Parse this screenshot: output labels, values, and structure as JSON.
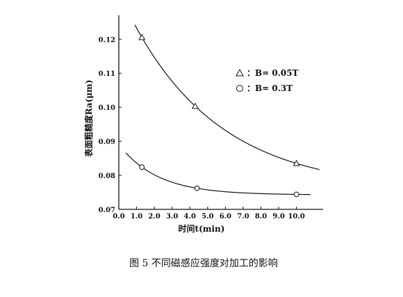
{
  "chart_data": {
    "type": "scatter",
    "xlabel": "时间t(min)",
    "ylabel": "表面粗糙度Ra(μm)",
    "xlim": [
      0,
      11.5
    ],
    "ylim": [
      0.07,
      0.127
    ],
    "x_ticks": [
      0,
      1,
      2,
      3,
      4,
      5,
      6,
      7,
      8,
      9,
      10
    ],
    "x_tick_labels": [
      "0.0",
      "1.0",
      "2.0",
      "3.0",
      "4.0",
      "5.0",
      "6.0",
      "7.0",
      "8.0",
      "9.0",
      "10.0"
    ],
    "y_ticks": [
      0.07,
      0.08,
      0.09,
      0.1,
      0.11,
      0.12
    ],
    "y_tick_labels": [
      "0.07",
      "0.08",
      "0.09",
      "0.10",
      "0.11",
      "0.12"
    ],
    "legend_position": "upper-right",
    "series": [
      {
        "name": "：B= 0.05T",
        "marker": "triangle",
        "x": [
          1.3,
          4.3,
          10.0
        ],
        "y": [
          0.1205,
          0.1003,
          0.0835
        ],
        "fit_curve": {
          "x_start": 0.9,
          "x_end": 11.3
        }
      },
      {
        "name": "：B= 0.3T",
        "marker": "circle",
        "x": [
          1.3,
          4.4,
          10.0
        ],
        "y": [
          0.0824,
          0.0762,
          0.0744
        ],
        "fit_curve": {
          "x_start": 0.4,
          "x_end": 10.8
        }
      }
    ],
    "legend": [
      {
        "symbol": "triangle",
        "label": "：B= 0.05T"
      },
      {
        "symbol": "circle",
        "label": "：B= 0.3T"
      }
    ]
  },
  "caption": "图 5    不同磁感应强度对加工的影响"
}
